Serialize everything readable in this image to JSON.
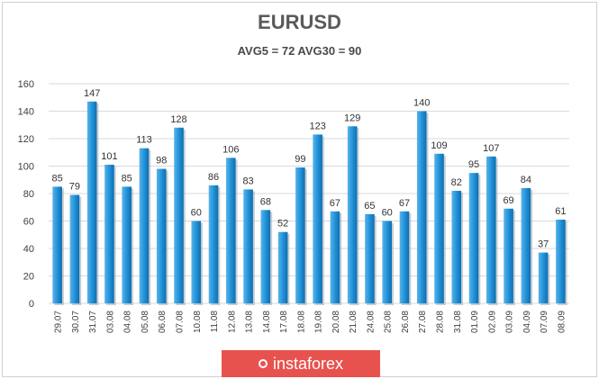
{
  "chart_data": {
    "type": "bar",
    "title": "EURUSD",
    "subtitle": "AVG5 = 72 AVG30 = 90",
    "xlabel": "",
    "ylabel": "",
    "ylim": [
      0,
      160
    ],
    "yticks": [
      "0",
      "20",
      "40",
      "60",
      "80",
      "100",
      "120",
      "140",
      "160"
    ],
    "grid": true,
    "categories": [
      "29.07",
      "30.07",
      "31.07",
      "03.08",
      "04.08",
      "05.08",
      "06.08",
      "07.08",
      "10.08",
      "11.08",
      "12.08",
      "13.08",
      "14.08",
      "17.08",
      "18.08",
      "19.08",
      "20.08",
      "21.08",
      "24.08",
      "25.08",
      "26.08",
      "27.08",
      "28.08",
      "31.08",
      "01.09",
      "02.09",
      "03.09",
      "04.09",
      "07.09",
      "08.09"
    ],
    "values": [
      85,
      79,
      147,
      101,
      85,
      113,
      98,
      128,
      60,
      86,
      106,
      83,
      68,
      52,
      99,
      123,
      67,
      129,
      65,
      60,
      67,
      140,
      109,
      82,
      95,
      107,
      69,
      84,
      37,
      61
    ],
    "bar_color": "#1f8fd6"
  },
  "watermark": {
    "text": "instaforex"
  }
}
